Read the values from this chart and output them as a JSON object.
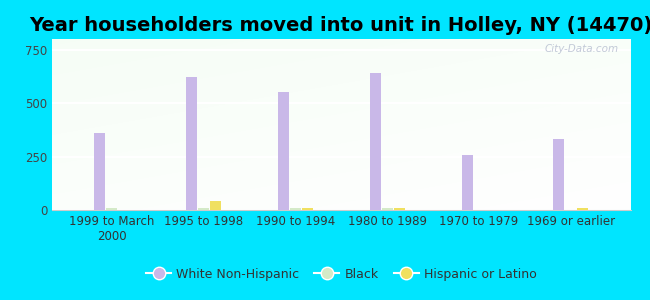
{
  "title": "Year householders moved into unit in Holley, NY (14470)",
  "categories": [
    "1999 to March\n2000",
    "1995 to 1998",
    "1990 to 1994",
    "1980 to 1989",
    "1970 to 1979",
    "1969 or earlier"
  ],
  "white_non_hispanic": [
    360,
    620,
    550,
    640,
    255,
    330
  ],
  "black": [
    8,
    8,
    10,
    10,
    0,
    0
  ],
  "hispanic_or_latino": [
    0,
    40,
    10,
    10,
    0,
    8
  ],
  "bar_colors": {
    "white": "#c9b8e8",
    "black": "#d4eac8",
    "hispanic": "#f0e060"
  },
  "background_outer": "#00e5ff",
  "ylim": [
    0,
    800
  ],
  "yticks": [
    0,
    250,
    500,
    750
  ],
  "legend_labels": [
    "White Non-Hispanic",
    "Black",
    "Hispanic or Latino"
  ],
  "watermark": "City-Data.com",
  "title_fontsize": 14,
  "tick_fontsize": 8.5
}
